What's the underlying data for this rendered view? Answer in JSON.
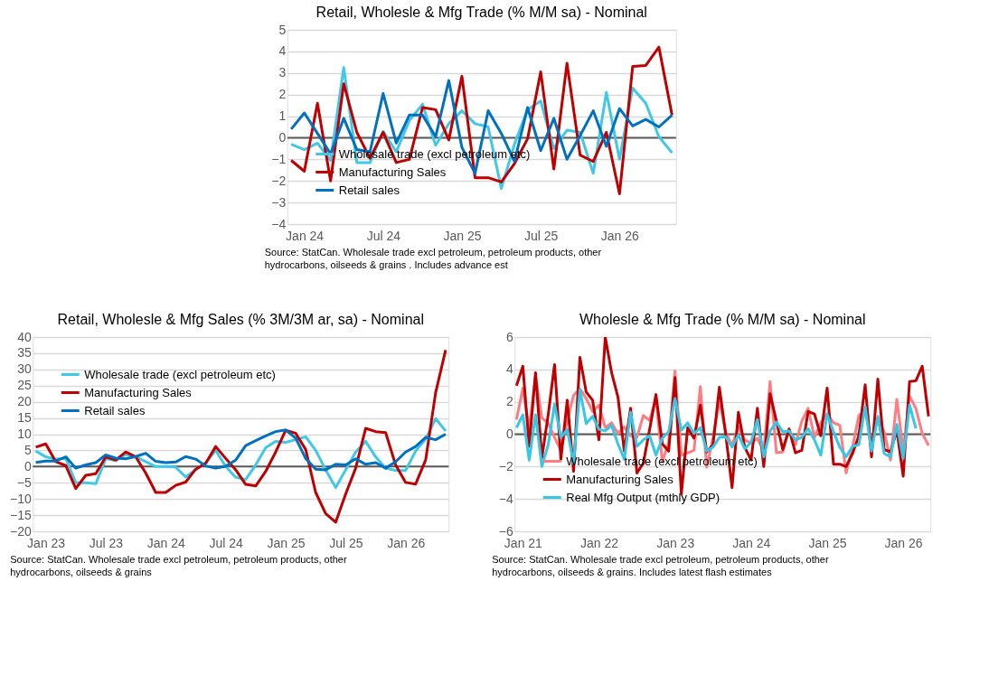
{
  "chart_data": [
    {
      "type": "line",
      "title": "Retail, Wholesle & Mfg Trade (% M/M sa) - Nominal",
      "categories": [
        null,
        "Jan 24",
        null,
        null,
        null,
        null,
        null,
        "Jul 24",
        null,
        null,
        null,
        null,
        null,
        "Jan 25",
        null,
        null,
        null,
        null,
        null,
        "Jul 25",
        null,
        null,
        null,
        null,
        null,
        "Jan 26",
        null,
        null,
        null,
        null
      ],
      "series": [
        {
          "name": "Wholesale trade (excl petroleum etc)",
          "color": "#3fc8e8",
          "values": [
            -0.3,
            -0.55,
            -0.25,
            -1.05,
            3.25,
            -1.15,
            -1.15,
            0.3,
            -0.65,
            0.8,
            1.55,
            -0.35,
            0.65,
            1.25,
            0.65,
            0.5,
            -2.35,
            -0.3,
            1.3,
            1.7,
            -0.5,
            0.35,
            0.25,
            -1.65,
            2.1,
            -1.0,
            2.3,
            1.6,
            0.05,
            -0.7
          ]
        },
        {
          "name": "Manufacturing Sales",
          "color": "#c00000",
          "values": [
            -1.05,
            -1.55,
            1.6,
            -2.0,
            2.5,
            0.25,
            -0.95,
            0.25,
            -1.15,
            -1.0,
            1.4,
            1.3,
            -0.1,
            2.85,
            -1.85,
            -1.85,
            -2.05,
            -1.2,
            -0.05,
            3.05,
            -1.45,
            3.45,
            -0.8,
            -1.1,
            0.25,
            -2.6,
            3.3,
            3.35,
            4.2,
            1.05
          ]
        },
        {
          "name": "Retail sales",
          "color": "#0070c0",
          "values": [
            0.4,
            1.15,
            0.2,
            -0.75,
            0.9,
            -0.55,
            -0.65,
            2.05,
            -0.25,
            1.05,
            1.05,
            0.05,
            2.65,
            -0.45,
            -1.65,
            1.25,
            0.2,
            -1.1,
            1.4,
            -0.6,
            0.9,
            -1.0,
            0.1,
            1.25,
            -0.4,
            1.35,
            0.55,
            0.85,
            0.5,
            1.05
          ]
        }
      ],
      "ylim": [
        -4,
        5
      ],
      "yticks": [
        -4,
        -3,
        -2,
        -1,
        0,
        1,
        2,
        3,
        4,
        5
      ],
      "grid": "y",
      "legend": "bottom left",
      "ref_lines": [
        {
          "axis": "y",
          "value": 0,
          "color": "#595959"
        }
      ],
      "annotations": [
        "Source: StatCan. Wholesale trade excl petroleum, petroleum products, other hydrocarbons, oilseeds & grains . Includes advance est"
      ]
    },
    {
      "type": "line",
      "title": "Retail, Wholesle & Mfg Sales (% 3M/3M ar, sa) - Nominal",
      "categories": [
        null,
        "Jan 23",
        null,
        null,
        null,
        null,
        null,
        "Jul 23",
        null,
        null,
        null,
        null,
        null,
        "Jan 24",
        null,
        null,
        null,
        null,
        null,
        "Jul 24",
        null,
        null,
        null,
        null,
        null,
        "Jan 25",
        null,
        null,
        null,
        null,
        null,
        "Jul 25",
        null,
        null,
        null,
        null,
        null,
        "Jan 26",
        null,
        null,
        null,
        null
      ],
      "series": [
        {
          "name": "Wholesale trade (excl petroleum etc)",
          "color": "#3fc8e8",
          "values": [
            4.8,
            3.0,
            2.3,
            2.5,
            -5.0,
            -5.0,
            -5.3,
            2.5,
            1.8,
            3.8,
            3.0,
            1.5,
            0,
            0,
            -0.2,
            -3.2,
            -1.0,
            1.2,
            5.0,
            0,
            -3.3,
            -4.0,
            0.5,
            5.8,
            7.8,
            7.5,
            8.3,
            9.2,
            5.0,
            -1.0,
            -6.5,
            -1.0,
            4.5,
            7.8,
            3.0,
            -0.5,
            -1.2,
            -1.2,
            4.8,
            8.5,
            14.8,
            11
          ]
        },
        {
          "name": "Manufacturing Sales",
          "color": "#c00000",
          "values": [
            6,
            7,
            1.5,
            0.3,
            -6.8,
            -2.7,
            -2.2,
            3.0,
            2.0,
            4.5,
            3.0,
            -2.0,
            -8.0,
            -8.0,
            -5.8,
            -4.8,
            -0.8,
            1.0,
            6.2,
            2.5,
            -1.0,
            -5.5,
            -6.0,
            -1.5,
            4.5,
            11.2,
            10.3,
            5.3,
            -8.0,
            -14.5,
            -17.2,
            -8.5,
            -0.5,
            11.8,
            10.8,
            10.5,
            0.5,
            -4.9,
            -5.4,
            2.0,
            22.8,
            36
          ]
        },
        {
          "name": "Retail sales",
          "color": "#0070c0",
          "values": [
            1.3,
            1.7,
            1.7,
            3.0,
            -0.5,
            0.5,
            1.2,
            3.6,
            2.6,
            2.4,
            3.1,
            4.1,
            1.6,
            1.2,
            1.4,
            3.1,
            2.3,
            0.2,
            -0.5,
            0.1,
            2.0,
            6.5,
            8.0,
            9.5,
            10.8,
            11.3,
            8.8,
            2.5,
            -0.8,
            -1.0,
            0.7,
            0.5,
            2.4,
            0.7,
            1.2,
            -0.5,
            1.5,
            4.5,
            6.2,
            9.0,
            8.3,
            10
          ]
        }
      ],
      "ylim": [
        -20,
        40
      ],
      "yticks": [
        -20,
        -15,
        -10,
        -5,
        0,
        5,
        10,
        15,
        20,
        25,
        30,
        35,
        40
      ],
      "grid": "y",
      "legend": "top left",
      "ref_lines": [
        {
          "axis": "y",
          "value": 0,
          "color": "#595959"
        }
      ],
      "annotations": [
        "Source: StatCan. Wholesale trade excl petroleum, petroleum products, other hydrocarbons, oilseeds & grains"
      ]
    },
    {
      "type": "line",
      "title": "Wholesle & Mfg Trade (% M/M sa) - Nominal",
      "categories": [
        null,
        "Jan 21",
        null,
        null,
        null,
        null,
        null,
        null,
        null,
        null,
        null,
        null,
        null,
        "Jan 22",
        null,
        null,
        null,
        null,
        null,
        null,
        null,
        null,
        null,
        null,
        null,
        "Jan 23",
        null,
        null,
        null,
        null,
        null,
        null,
        null,
        null,
        null,
        null,
        null,
        "Jan 24",
        null,
        null,
        null,
        null,
        null,
        null,
        null,
        null,
        null,
        null,
        null,
        "Jan 25",
        null,
        null,
        null,
        null,
        null,
        null,
        null,
        null,
        null,
        null,
        null,
        "Jan 26",
        null,
        null,
        null,
        null
      ],
      "series": [
        {
          "name": "Wholesale trade (excl petroleum etc)",
          "color": "#ff7c80",
          "values": [
            0.9,
            2.85,
            0.3,
            3.6,
            1.0,
            0.7,
            -0.2,
            -1.0,
            0.8,
            2.4,
            2.8,
            2.2,
            1.4,
            1.8,
            0.4,
            0.7,
            0.05,
            0.45,
            -0.1,
            -0.2,
            1.15,
            0.85,
            2.2,
            -1.7,
            -0.5,
            3.9,
            -1.3,
            -1.15,
            -1.0,
            2.95,
            -2.05,
            -0.2,
            2.05,
            0.15,
            -0.7,
            0.45,
            -0.35,
            -0.55,
            -0.25,
            -1.05,
            3.25,
            -1.15,
            -1.1,
            0.35,
            -0.65,
            0.8,
            1.6,
            -0.2,
            0.7,
            1.25,
            0.7,
            0.55,
            -2.4,
            -0.8,
            1.15,
            1.5,
            -0.5,
            1.0,
            0.15,
            -1.6,
            2.15,
            -1.0,
            2.35,
            1.6,
            0.05,
            -0.7
          ]
        },
        {
          "name": "Manufacturing Sales",
          "color": "#c00000",
          "values": [
            3.0,
            4.2,
            -0.75,
            3.8,
            -1.45,
            1.2,
            4.3,
            -1.55,
            2.1,
            -2.3,
            4.75,
            2.6,
            2.1,
            -0.35,
            6.0,
            3.8,
            2.3,
            -1.05,
            1.6,
            -2.4,
            -1.8,
            0.3,
            2.45,
            -0.6,
            -1.05,
            3.5,
            -3.7,
            0.4,
            -0.25,
            1.8,
            -1.1,
            -0.65,
            2.9,
            0,
            -3.3,
            1.35,
            -0.8,
            -1.6,
            1.6,
            -2.0,
            2.5,
            0.8,
            -0.95,
            0.3,
            -1.15,
            -1.0,
            1.4,
            1.25,
            -0.1,
            2.85,
            -1.85,
            -1.85,
            -2.0,
            -1.2,
            -0.1,
            3.05,
            -1.4,
            3.4,
            -0.95,
            -1.1,
            0.25,
            -2.6,
            3.25,
            3.3,
            4.2,
            1.1
          ]
        },
        {
          "name": "Real Mfg Output (mthly GDP)",
          "color": "#33c7e8",
          "values": [
            0.4,
            1.2,
            -1.6,
            1.2,
            -2.0,
            -0.65,
            1.85,
            -0.2,
            0.3,
            -1.8,
            2.75,
            0.65,
            1.1,
            0.3,
            0.2,
            0.55,
            -0.6,
            -1.55,
            1.35,
            -0.75,
            -0.35,
            -0.1,
            -1.3,
            -0.25,
            0.15,
            2.2,
            0.25,
            0.7,
            0.05,
            0.4,
            -1.05,
            -0.8,
            -0.2,
            -0.15,
            -0.8,
            -0.05,
            -0.9,
            -0.5,
            0.9,
            -1.4,
            0.2,
            0.75,
            0.15,
            0.2,
            -0.35,
            -0.2,
            0.35,
            -0.35,
            -1.3,
            1.25,
            0.15,
            -0.8,
            -1.4,
            -0.75,
            -0.65,
            1.7,
            -1.05,
            1.1,
            -1.2,
            -1.4,
            0.6,
            -1.5,
            1.8,
            0.35,
            null,
            null
          ]
        }
      ],
      "ylim": [
        -6,
        6
      ],
      "yticks": [
        -6,
        -4,
        -2,
        0,
        2,
        4,
        6
      ],
      "grid": "y",
      "legend": "bottom left",
      "ref_lines": [
        {
          "axis": "y",
          "value": 0,
          "color": "#595959"
        }
      ],
      "annotations": [
        "Source: StatCan. Wholesale trade excl petroleum, petroleum products, other hydrocarbons, oilseeds & grains. Includes latest flash estimates"
      ]
    }
  ]
}
